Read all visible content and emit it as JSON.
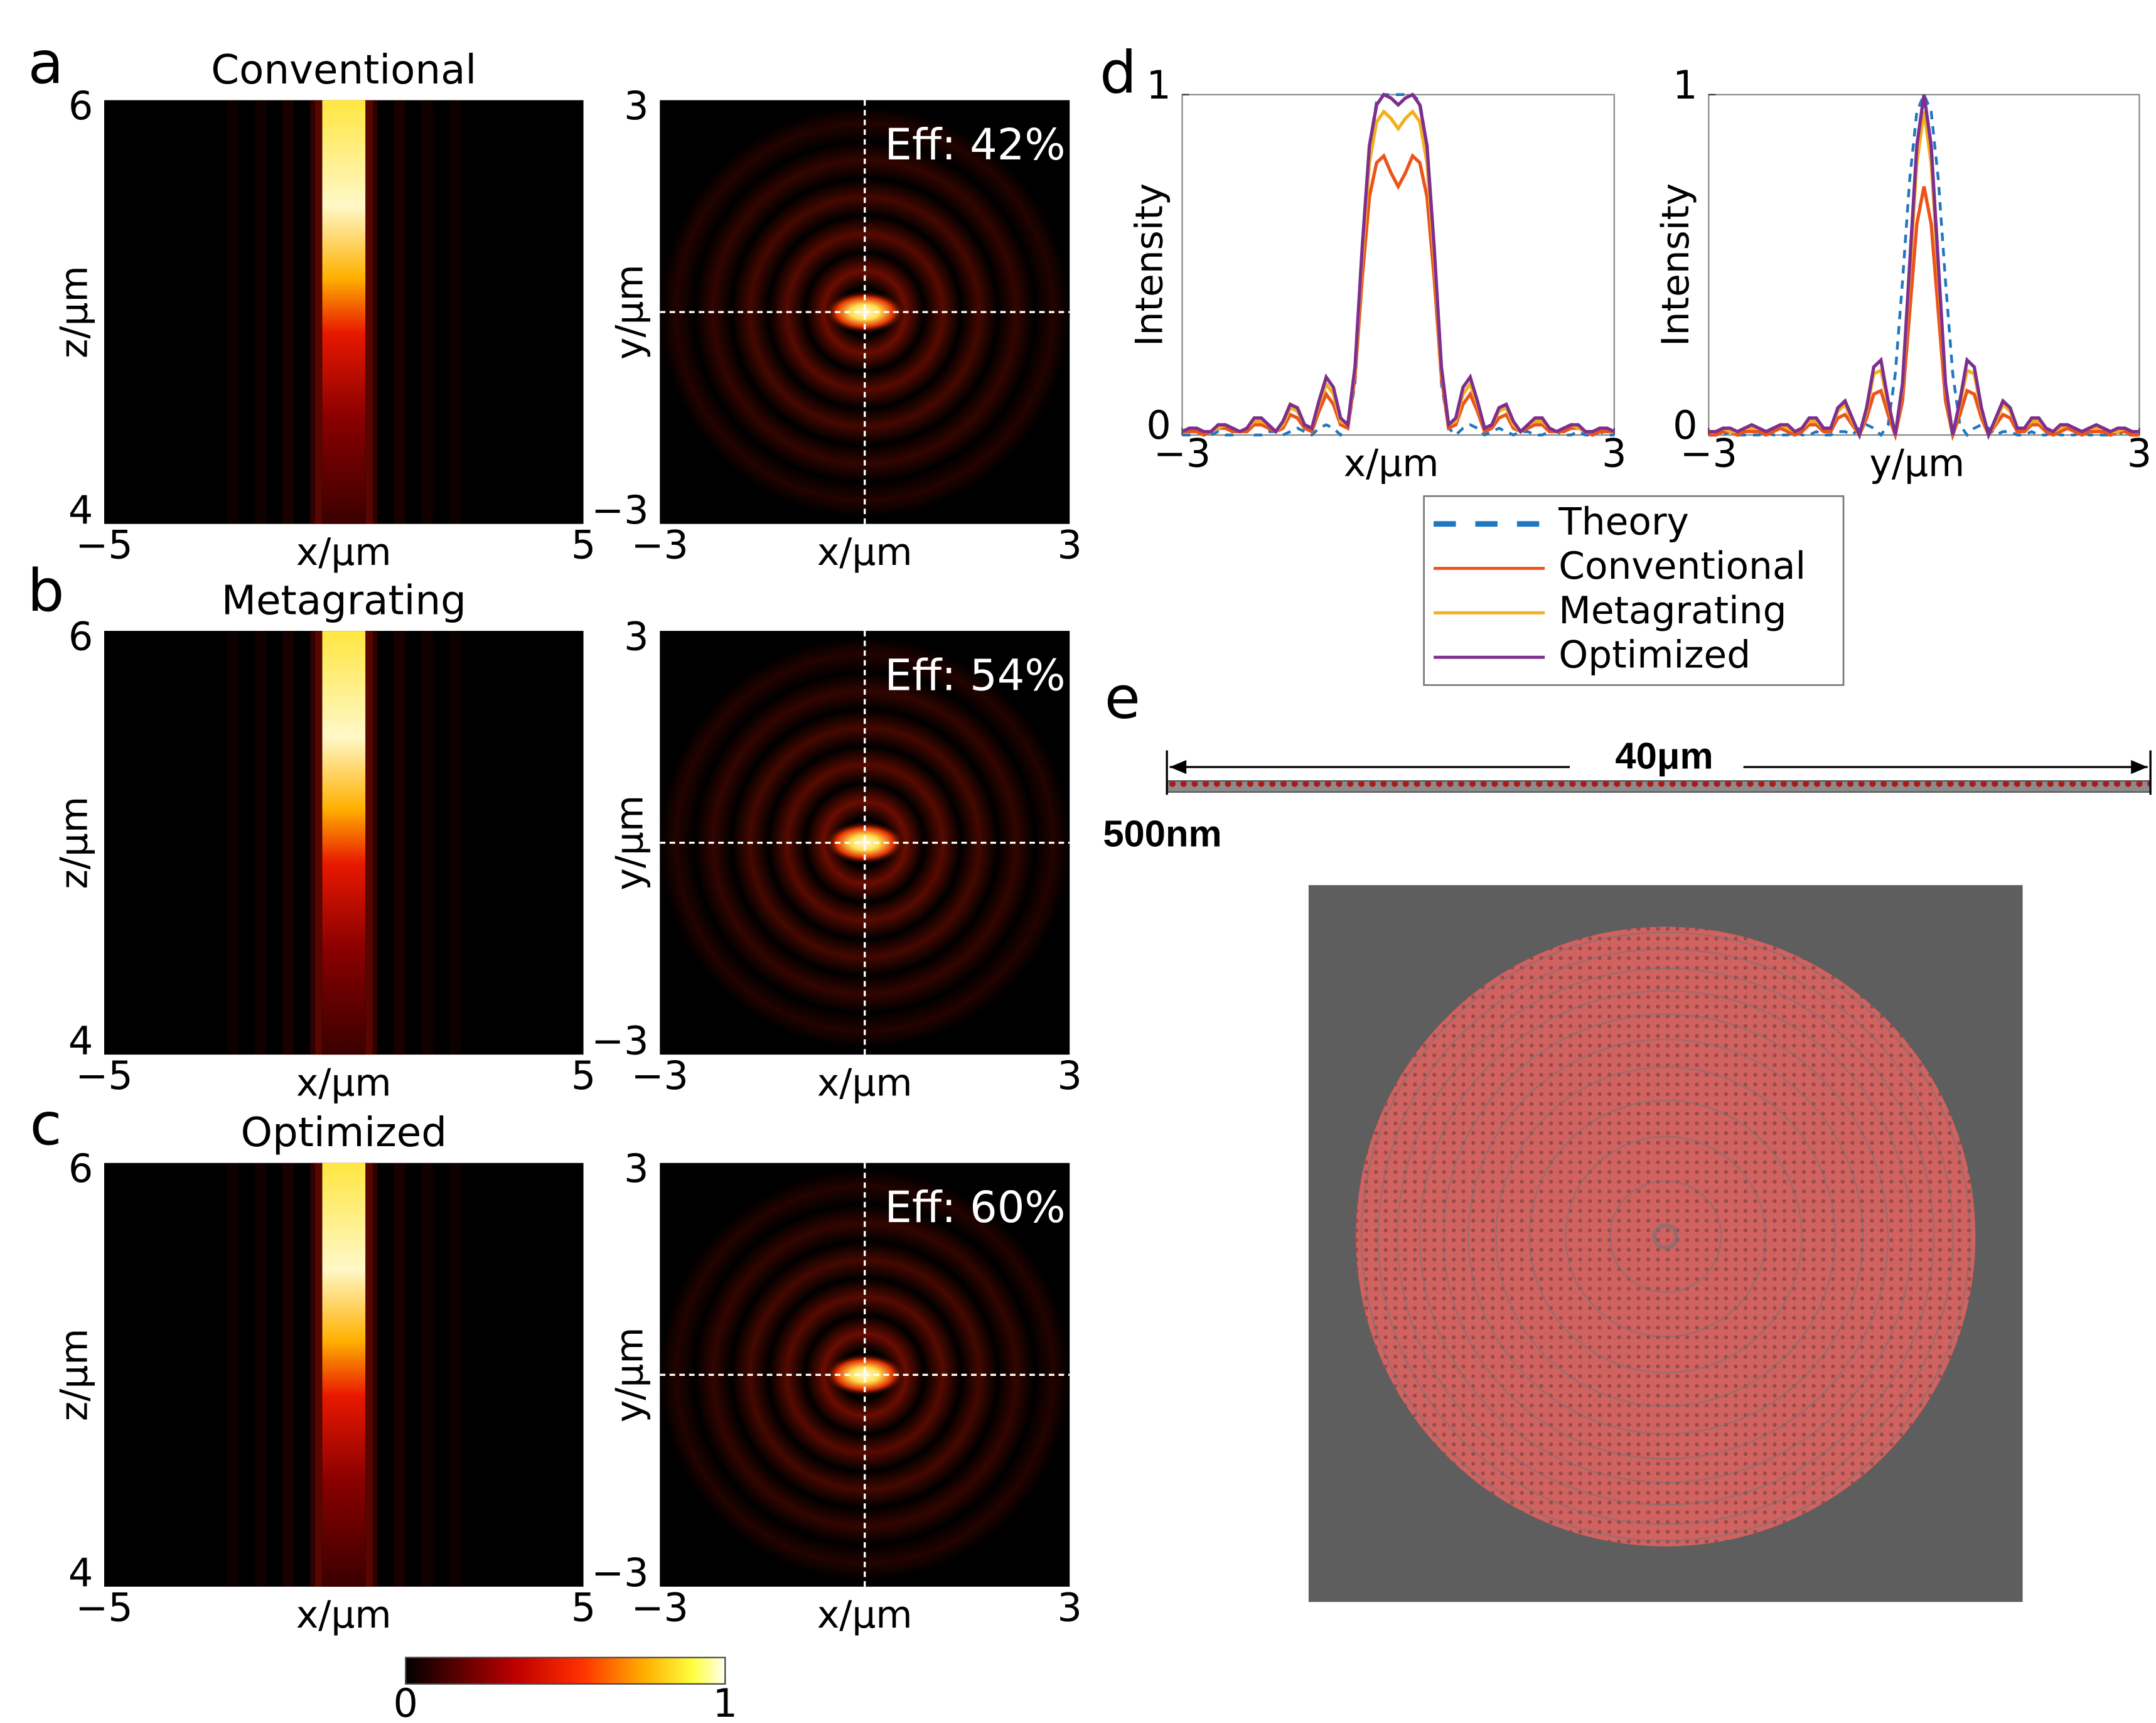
{
  "panel_labels": [
    "a",
    "b",
    "c",
    "d",
    "e"
  ],
  "chart_data": [
    {
      "type": "heatmap",
      "title": "Conventional",
      "xlabel": "x/μm",
      "ylabel": "z/μm",
      "xlim": [
        -5,
        5
      ],
      "ylim": [
        4,
        6
      ],
      "xticks": [
        {
          "value": -5,
          "label": "−5"
        },
        5
      ],
      "yticks": [
        4,
        6
      ]
    },
    {
      "type": "heatmap",
      "annotation": "Eff: 42%",
      "xlabel": "x/μm",
      "ylabel": "y/μm",
      "xlim": [
        -3,
        3
      ],
      "ylim": [
        -3,
        3
      ],
      "xticks": [
        {
          "value": -3,
          "label": "−3"
        },
        3
      ],
      "yticks": [
        {
          "value": -3,
          "label": "−3"
        },
        3
      ]
    },
    {
      "type": "heatmap",
      "title": "Metagrating",
      "xlabel": "x/μm",
      "ylabel": "z/μm",
      "xlim": [
        -5,
        5
      ],
      "ylim": [
        4,
        6
      ],
      "xticks": [
        {
          "value": -5,
          "label": "−5"
        },
        5
      ],
      "yticks": [
        4,
        6
      ]
    },
    {
      "type": "heatmap",
      "annotation": "Eff: 54%",
      "xlabel": "x/μm",
      "ylabel": "y/μm",
      "xlim": [
        -3,
        3
      ],
      "ylim": [
        -3,
        3
      ],
      "xticks": [
        {
          "value": -3,
          "label": "−3"
        },
        3
      ],
      "yticks": [
        {
          "value": -3,
          "label": "−3"
        },
        3
      ]
    },
    {
      "type": "heatmap",
      "title": "Optimized",
      "xlabel": "x/μm",
      "ylabel": "z/μm",
      "xlim": [
        -5,
        5
      ],
      "ylim": [
        4,
        6
      ],
      "xticks": [
        {
          "value": -5,
          "label": "−5"
        },
        5
      ],
      "yticks": [
        4,
        6
      ]
    },
    {
      "type": "heatmap",
      "annotation": "Eff: 60%",
      "xlabel": "x/μm",
      "ylabel": "y/μm",
      "xlim": [
        -3,
        3
      ],
      "ylim": [
        -3,
        3
      ],
      "xticks": [
        {
          "value": -3,
          "label": "−3"
        },
        3
      ],
      "yticks": [
        {
          "value": -3,
          "label": "−3"
        },
        3
      ]
    },
    {
      "type": "line",
      "xlabel": "x/μm",
      "ylabel": "Intensity",
      "xlim": [
        -3,
        3
      ],
      "ylim": [
        0,
        1
      ],
      "xticks": [
        {
          "value": -3,
          "label": "−3"
        },
        3
      ],
      "yticks": [
        0,
        1
      ],
      "legend": "below",
      "x": [
        -3,
        -2.9,
        -2.8,
        -2.7,
        -2.6,
        -2.5,
        -2.4,
        -2.3,
        -2.2,
        -2.1,
        -2,
        -1.9,
        -1.8,
        -1.7,
        -1.6,
        -1.5,
        -1.4,
        -1.3,
        -1.2,
        -1.1,
        -1,
        -0.9,
        -0.8,
        -0.7,
        -0.6,
        -0.5,
        -0.4,
        -0.3,
        -0.2,
        -0.1,
        0,
        0.1,
        0.2,
        0.3,
        0.4,
        0.5,
        0.6,
        0.7,
        0.8,
        0.9,
        1,
        1.1,
        1.2,
        1.3,
        1.4,
        1.5,
        1.6,
        1.7,
        1.8,
        1.9,
        2,
        2.1,
        2.2,
        2.3,
        2.4,
        2.5,
        2.6,
        2.7,
        2.8,
        2.9,
        3
      ],
      "series": [
        {
          "name": "Theory",
          "color": "#1f77c0",
          "dash": true,
          "values": [
            0,
            0,
            0.01,
            0,
            0,
            0.01,
            0,
            0,
            0.01,
            0.01,
            0,
            0,
            0.01,
            0.01,
            0,
            0.01,
            0.02,
            0.01,
            0,
            0.02,
            0.03,
            0.02,
            0,
            0.02,
            0.15,
            0.5,
            0.85,
            0.98,
            1,
            1,
            1,
            1,
            1,
            0.98,
            0.85,
            0.5,
            0.15,
            0.02,
            0,
            0.02,
            0.03,
            0.02,
            0,
            0.01,
            0.02,
            0.01,
            0,
            0.01,
            0.01,
            0,
            0,
            0.01,
            0.01,
            0,
            0,
            0.01,
            0,
            0,
            0.01,
            0,
            0
          ]
        },
        {
          "name": "Conventional",
          "color": "#ec5319",
          "dash": false,
          "values": [
            0.01,
            0.01,
            0.01,
            0,
            0.01,
            0.02,
            0.02,
            0.01,
            0.01,
            0.01,
            0.03,
            0.03,
            0.02,
            0.01,
            0.02,
            0.06,
            0.05,
            0.02,
            0.01,
            0.07,
            0.12,
            0.09,
            0.03,
            0.02,
            0.17,
            0.46,
            0.7,
            0.8,
            0.82,
            0.77,
            0.73,
            0.77,
            0.82,
            0.8,
            0.7,
            0.46,
            0.17,
            0.02,
            0.03,
            0.09,
            0.12,
            0.07,
            0.01,
            0.02,
            0.05,
            0.06,
            0.02,
            0.01,
            0.02,
            0.03,
            0.03,
            0.01,
            0.01,
            0.01,
            0.02,
            0.02,
            0.01,
            0,
            0.01,
            0.01,
            0.01
          ]
        },
        {
          "name": "Metagrating",
          "color": "#f2b01e",
          "dash": false,
          "values": [
            0.01,
            0.02,
            0.02,
            0.01,
            0.01,
            0.02,
            0.03,
            0.02,
            0.01,
            0.02,
            0.04,
            0.04,
            0.03,
            0.01,
            0.03,
            0.08,
            0.07,
            0.03,
            0.02,
            0.09,
            0.15,
            0.12,
            0.04,
            0.03,
            0.19,
            0.52,
            0.8,
            0.92,
            0.95,
            0.93,
            0.9,
            0.93,
            0.95,
            0.92,
            0.8,
            0.52,
            0.19,
            0.03,
            0.04,
            0.12,
            0.15,
            0.09,
            0.02,
            0.03,
            0.07,
            0.08,
            0.03,
            0.01,
            0.03,
            0.04,
            0.04,
            0.02,
            0.01,
            0.02,
            0.03,
            0.02,
            0.01,
            0.01,
            0.02,
            0.02,
            0.01
          ]
        },
        {
          "name": "Optimized",
          "color": "#7e2f8e",
          "dash": false,
          "values": [
            0.01,
            0.02,
            0.02,
            0.01,
            0.01,
            0.03,
            0.03,
            0.02,
            0.01,
            0.02,
            0.05,
            0.05,
            0.03,
            0.01,
            0.04,
            0.09,
            0.08,
            0.03,
            0.02,
            0.1,
            0.17,
            0.14,
            0.05,
            0.03,
            0.2,
            0.55,
            0.85,
            0.97,
            1,
            0.99,
            0.97,
            0.99,
            1,
            0.97,
            0.85,
            0.55,
            0.2,
            0.03,
            0.05,
            0.14,
            0.17,
            0.1,
            0.02,
            0.03,
            0.08,
            0.09,
            0.04,
            0.01,
            0.03,
            0.05,
            0.05,
            0.02,
            0.01,
            0.02,
            0.03,
            0.03,
            0.01,
            0.01,
            0.02,
            0.02,
            0.01
          ]
        }
      ]
    },
    {
      "type": "line",
      "xlabel": "y/μm",
      "ylabel": "Intensity",
      "xlim": [
        -3,
        3
      ],
      "ylim": [
        0,
        1
      ],
      "xticks": [
        {
          "value": -3,
          "label": "−3"
        },
        3
      ],
      "yticks": [
        0,
        1
      ],
      "x": [
        -3,
        -2.9,
        -2.8,
        -2.7,
        -2.6,
        -2.5,
        -2.4,
        -2.3,
        -2.2,
        -2.1,
        -2,
        -1.9,
        -1.8,
        -1.7,
        -1.6,
        -1.5,
        -1.4,
        -1.3,
        -1.2,
        -1.1,
        -1,
        -0.9,
        -0.8,
        -0.7,
        -0.6,
        -0.5,
        -0.4,
        -0.3,
        -0.2,
        -0.1,
        0,
        0.1,
        0.2,
        0.3,
        0.4,
        0.5,
        0.6,
        0.7,
        0.8,
        0.9,
        1,
        1.1,
        1.2,
        1.3,
        1.4,
        1.5,
        1.6,
        1.7,
        1.8,
        1.9,
        2,
        2.1,
        2.2,
        2.3,
        2.4,
        2.5,
        2.6,
        2.7,
        2.8,
        2.9,
        3
      ],
      "series": [
        {
          "color": "#1f77c0",
          "dash": true,
          "values": [
            0,
            0,
            0,
            0.01,
            0,
            0,
            0,
            0,
            0.01,
            0,
            0,
            0,
            0.01,
            0,
            0,
            0.01,
            0,
            0,
            0.01,
            0.01,
            0,
            0.02,
            0.03,
            0.02,
            0,
            0.03,
            0.18,
            0.45,
            0.75,
            0.95,
            1,
            0.95,
            0.75,
            0.45,
            0.18,
            0.03,
            0,
            0.02,
            0.03,
            0.02,
            0,
            0.01,
            0.01,
            0,
            0,
            0.01,
            0,
            0,
            0.01,
            0,
            0,
            0,
            0.01,
            0,
            0,
            0,
            0,
            0.01,
            0,
            0,
            0
          ]
        },
        {
          "color": "#ec5319",
          "dash": false,
          "values": [
            0,
            0,
            0.01,
            0.01,
            0,
            0.01,
            0.01,
            0.01,
            0,
            0.01,
            0.02,
            0.01,
            0,
            0.01,
            0.03,
            0.03,
            0.01,
            0.01,
            0.05,
            0.06,
            0.03,
            0,
            0.05,
            0.12,
            0.13,
            0.06,
            0,
            0.1,
            0.36,
            0.62,
            0.73,
            0.62,
            0.36,
            0.1,
            0,
            0.06,
            0.13,
            0.12,
            0.05,
            0,
            0.03,
            0.06,
            0.05,
            0.01,
            0.01,
            0.03,
            0.03,
            0.01,
            0,
            0.01,
            0.02,
            0.01,
            0,
            0.01,
            0.01,
            0.01,
            0,
            0.01,
            0.01,
            0,
            0
          ]
        },
        {
          "color": "#f2b01e",
          "dash": false,
          "values": [
            0.01,
            0.01,
            0.02,
            0.01,
            0.01,
            0.02,
            0.02,
            0.02,
            0.01,
            0.02,
            0.03,
            0.02,
            0.01,
            0.02,
            0.04,
            0.04,
            0.02,
            0.02,
            0.07,
            0.09,
            0.04,
            0,
            0.07,
            0.18,
            0.19,
            0.09,
            0,
            0.14,
            0.47,
            0.8,
            0.95,
            0.8,
            0.47,
            0.14,
            0,
            0.09,
            0.19,
            0.18,
            0.07,
            0,
            0.04,
            0.09,
            0.07,
            0.02,
            0.02,
            0.04,
            0.04,
            0.02,
            0.01,
            0.02,
            0.03,
            0.02,
            0.01,
            0.02,
            0.02,
            0.02,
            0.01,
            0.01,
            0.02,
            0.01,
            0.01
          ]
        },
        {
          "color": "#7e2f8e",
          "dash": false,
          "values": [
            0.01,
            0.01,
            0.02,
            0.02,
            0.01,
            0.02,
            0.03,
            0.02,
            0.01,
            0.02,
            0.03,
            0.03,
            0.01,
            0.02,
            0.05,
            0.05,
            0.02,
            0.02,
            0.08,
            0.1,
            0.05,
            0,
            0.08,
            0.2,
            0.22,
            0.1,
            0,
            0.15,
            0.5,
            0.85,
            1,
            0.85,
            0.5,
            0.15,
            0,
            0.1,
            0.22,
            0.2,
            0.08,
            0,
            0.05,
            0.1,
            0.08,
            0.02,
            0.02,
            0.05,
            0.05,
            0.02,
            0.01,
            0.03,
            0.03,
            0.02,
            0.01,
            0.02,
            0.03,
            0.02,
            0.01,
            0.02,
            0.02,
            0.01,
            0.01
          ]
        }
      ]
    },
    {
      "type": "colorbar",
      "lim": [
        0,
        1
      ],
      "ticks": [
        0,
        1
      ]
    }
  ],
  "structure": {
    "length_label": "40μm",
    "thickness_label": "500nm"
  }
}
